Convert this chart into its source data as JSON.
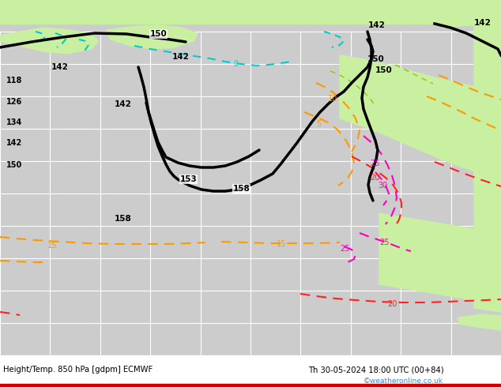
{
  "title": "Height/Temp. 850 hPa [gdpm] ECMWF",
  "subtitle": "Th 30-05-2024 18:00 UTC (00+84)",
  "watermark": "©weatheronline.co.uk",
  "bg_color": "#d0d0d0",
  "land_color": "#c8f0a0",
  "ocean_color": "#cccccc",
  "grid_color": "#ffffff",
  "cyan_color": "#00cccc",
  "orange_color": "#ff9900",
  "red_color": "#ff2222",
  "pink_color": "#ff00bb",
  "lime_color": "#88cc00",
  "black_lw": 2.5,
  "temp_lw": 1.5,
  "figsize": [
    6.34,
    4.9
  ],
  "dpi": 100
}
